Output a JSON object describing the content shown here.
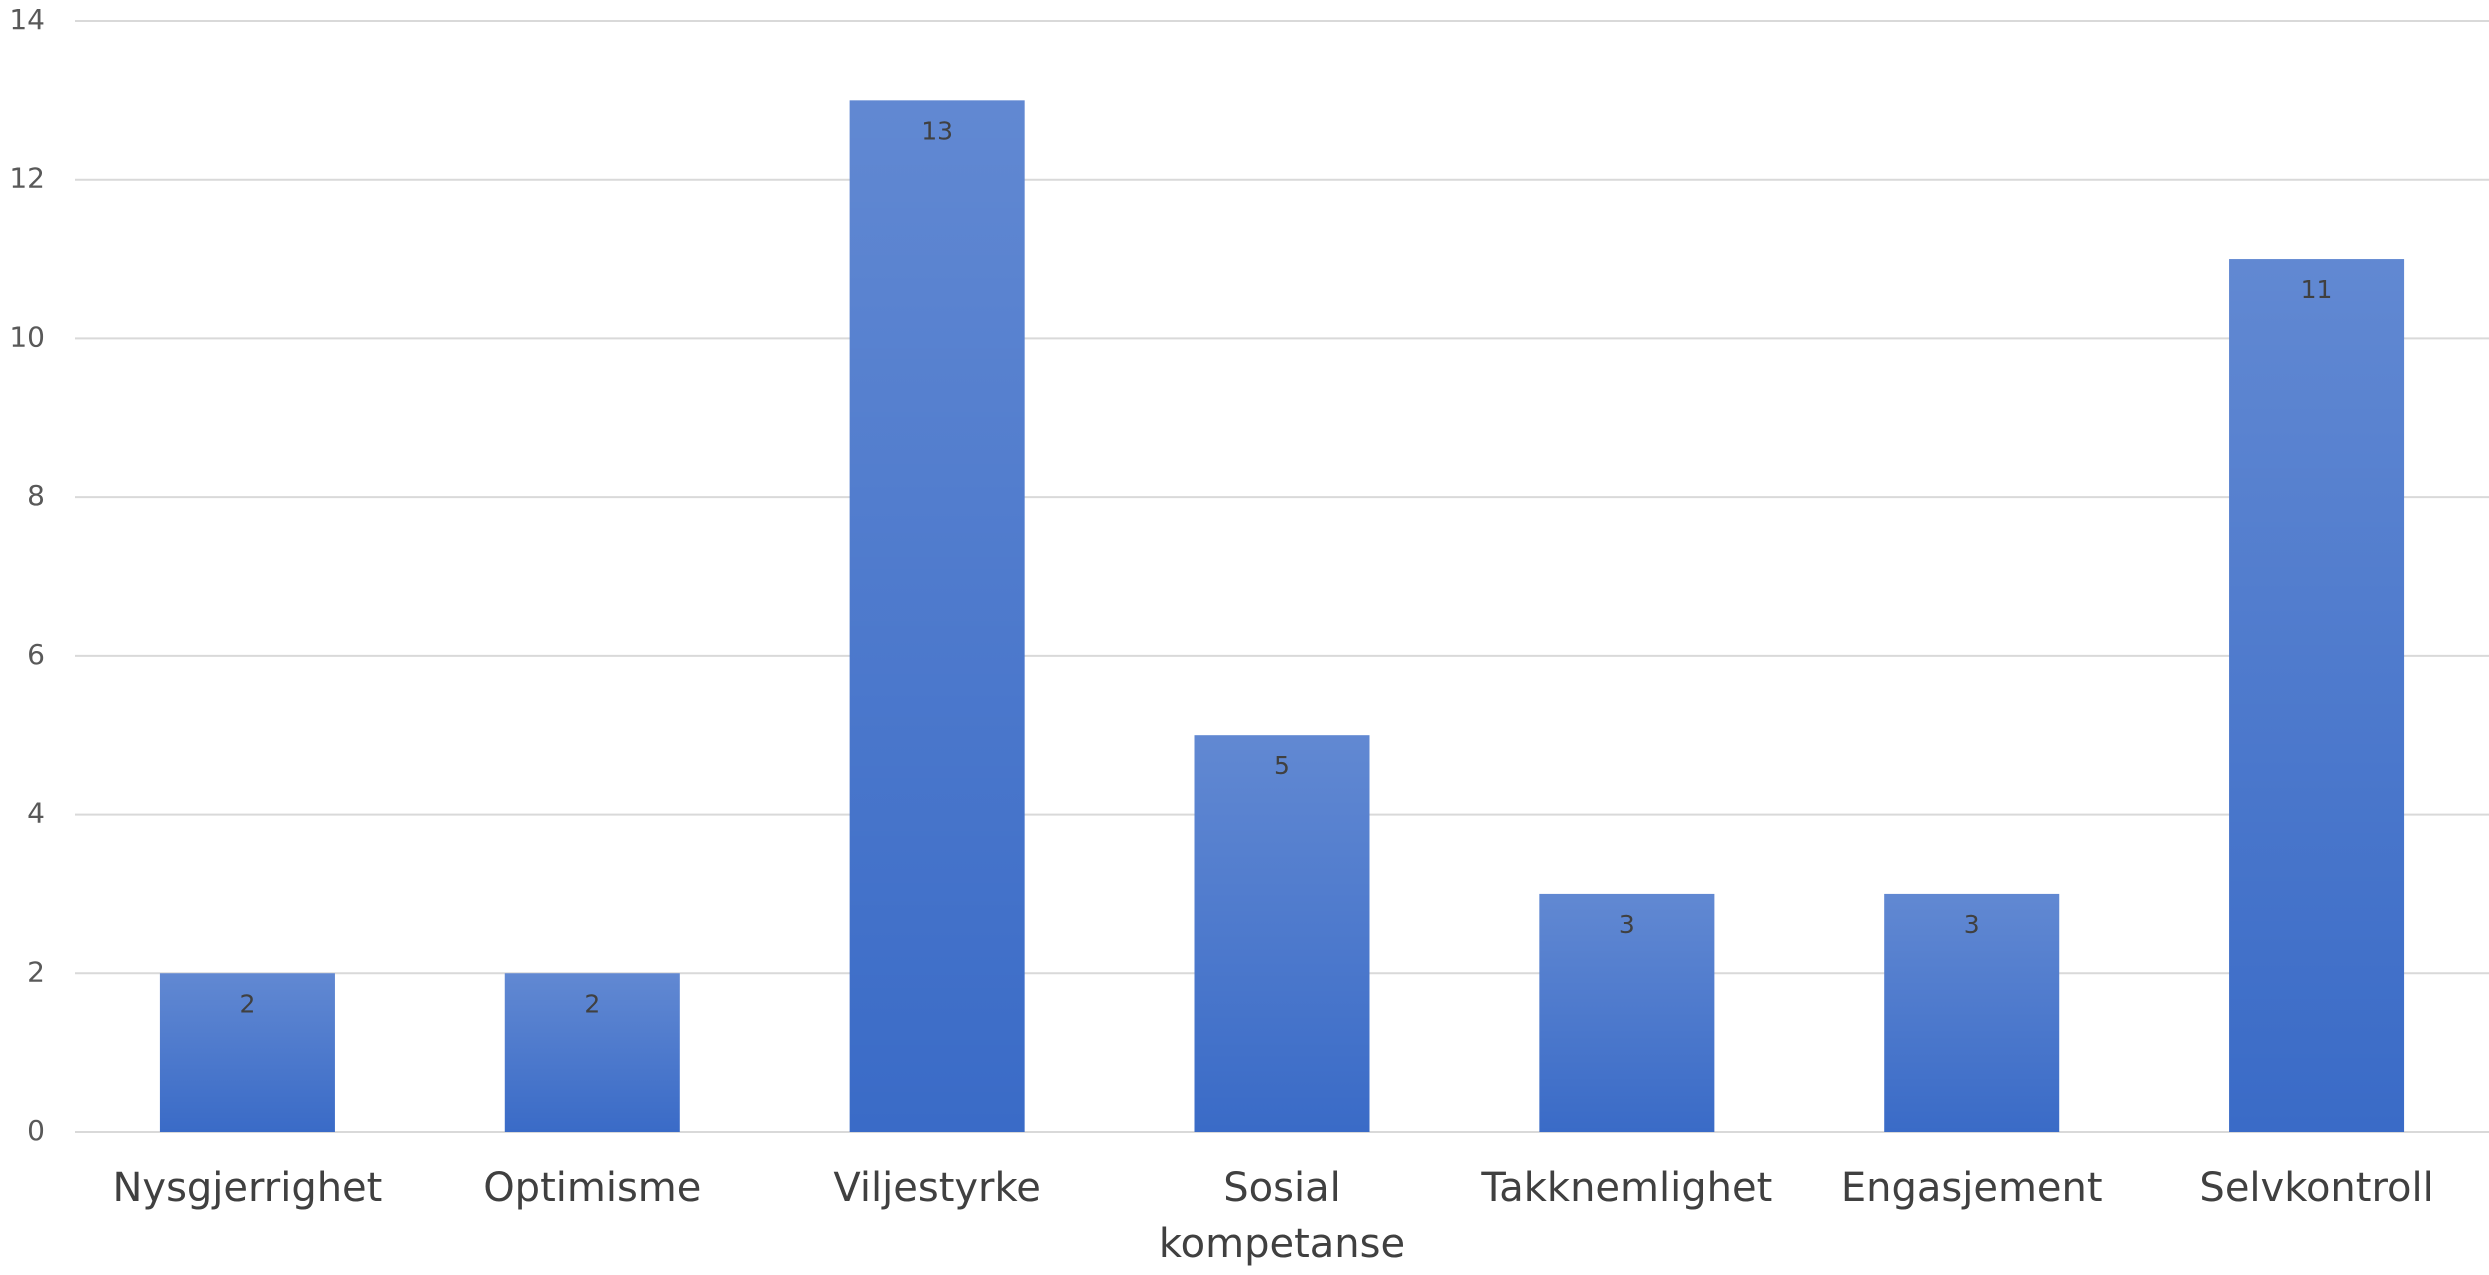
{
  "chart_data": {
    "type": "bar",
    "categories": [
      "Nysgjerrighet",
      "Optimisme",
      "Viljestyrke",
      "Sosial kompetanse",
      "Takknemlighet",
      "Engasjement",
      "Selvkontroll"
    ],
    "values": [
      2,
      2,
      13,
      5,
      3,
      3,
      11
    ],
    "color": "#3a6bc7",
    "ylim": [
      0,
      14
    ],
    "yticks": [
      0,
      2,
      4,
      6,
      8,
      10,
      12,
      14
    ],
    "grid": true
  }
}
